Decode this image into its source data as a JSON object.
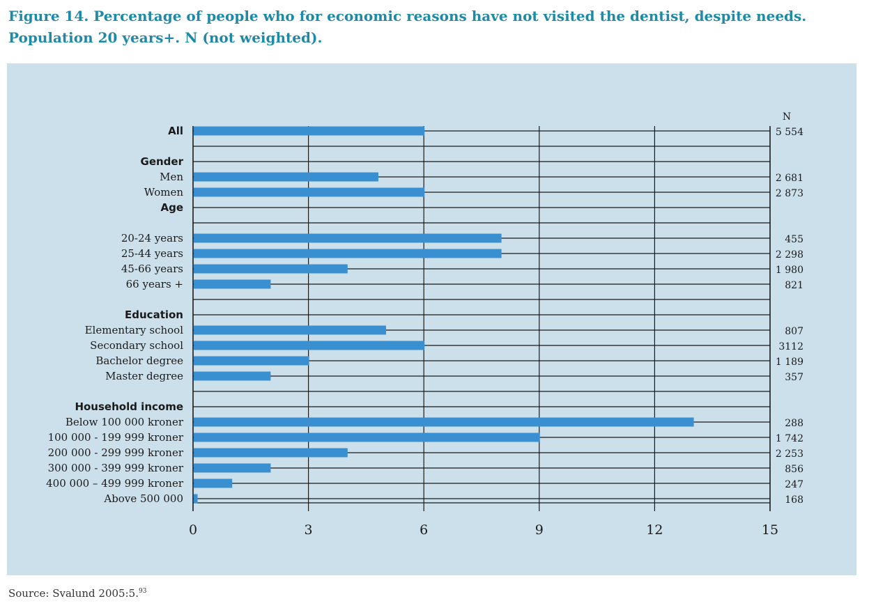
{
  "title": "Figure 14. Percentage of people who for economic reasons have not visited the dentist, despite needs. Population 20 years+. N (not weighted).",
  "source": {
    "text": "Source: Svalund 2005:5.",
    "footnote": "93"
  },
  "colors": {
    "bar": "#3a8fd0",
    "panel": "#cce0ec",
    "title": "#1f8aa6",
    "grid": "#1a1a1a"
  },
  "chart_data": {
    "type": "bar",
    "orientation": "horizontal",
    "xlim": [
      0,
      15
    ],
    "xticks": [
      0,
      3,
      6,
      9,
      12,
      15
    ],
    "n_header": "N",
    "grid": true,
    "rows": [
      {
        "kind": "group",
        "label": "All",
        "value": 6,
        "n": "5 554"
      },
      {
        "kind": "blank"
      },
      {
        "kind": "group",
        "label": "Gender"
      },
      {
        "kind": "item",
        "label": "Men",
        "value": 4.8,
        "n": "2 681"
      },
      {
        "kind": "item",
        "label": "Women",
        "value": 6,
        "n": "2 873"
      },
      {
        "kind": "group",
        "label": "Age"
      },
      {
        "kind": "blank"
      },
      {
        "kind": "item",
        "label": "20-24 years",
        "value": 8,
        "n": "455"
      },
      {
        "kind": "item",
        "label": "25-44 years",
        "value": 8,
        "n": "2 298"
      },
      {
        "kind": "item",
        "label": "45-66 years",
        "value": 4,
        "n": "1 980"
      },
      {
        "kind": "item",
        "label": "66 years +",
        "value": 2,
        "n": "821"
      },
      {
        "kind": "blank"
      },
      {
        "kind": "group",
        "label": "Education"
      },
      {
        "kind": "item",
        "label": "Elementary school",
        "value": 5,
        "n": "807"
      },
      {
        "kind": "item",
        "label": "Secondary school",
        "value": 6,
        "n": "3112"
      },
      {
        "kind": "item",
        "label": "Bachelor degree",
        "value": 3,
        "n": "1 189"
      },
      {
        "kind": "item",
        "label": "Master degree",
        "value": 2,
        "n": "357"
      },
      {
        "kind": "blank"
      },
      {
        "kind": "group",
        "label": "Household income"
      },
      {
        "kind": "item",
        "label": "Below 100 000 kroner",
        "value": 13,
        "n": "288"
      },
      {
        "kind": "item",
        "label": "100 000 - 199 999 kroner",
        "value": 9,
        "n": "1 742"
      },
      {
        "kind": "item",
        "label": "200 000 -  299 999 kroner",
        "value": 4,
        "n": "2 253"
      },
      {
        "kind": "item",
        "label": "300 000 - 399 999 kroner",
        "value": 2,
        "n": "856"
      },
      {
        "kind": "item",
        "label": "400 000 – 499 999 kroner",
        "value": 1,
        "n": "247"
      },
      {
        "kind": "item",
        "label": "Above 500 000",
        "value": 0.1,
        "n": "168"
      }
    ]
  }
}
